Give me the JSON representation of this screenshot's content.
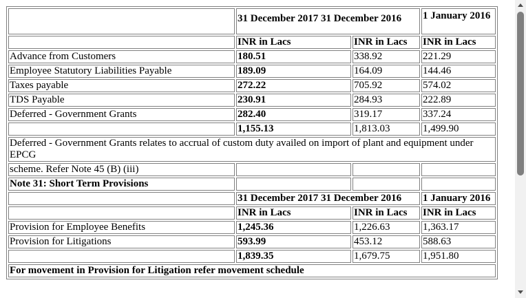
{
  "table1": {
    "header": {
      "col1": "31 December 2017",
      "col2": "31 December 2016",
      "col3": "1 January 2016"
    },
    "unit": "INR in Lacs",
    "rows": [
      {
        "label": "Advance from Customers",
        "v1": "180.51",
        "v2": "338.92",
        "v3": "221.29"
      },
      {
        "label": "Employee Statutory Liabilities Payable",
        "v1": "189.09",
        "v2": "164.09",
        "v3": "144.46"
      },
      {
        "label": "Taxes payable",
        "v1": "272.22",
        "v2": "705.92",
        "v3": "574.02"
      },
      {
        "label": "TDS Payable",
        "v1": "230.91",
        "v2": "284.93",
        "v3": "222.89"
      },
      {
        "label": "Deferred - Government Grants",
        "v1": "282.40",
        "v2": "319.17",
        "v3": "337.24"
      }
    ],
    "total": {
      "v1": "1,155.13",
      "v2": "1,813.03",
      "v3": "1,499.90"
    },
    "note_line1": "Deferred - Government Grants relates to accrual of custom duty availed on import of plant and equipment under EPCG",
    "note_line2": "scheme. Refer Note 45 (B) (iii)"
  },
  "note31": {
    "title": "Note 31: Short Term Provisions",
    "header": {
      "col1": "31 December 2017",
      "col2": "31 December 2016",
      "col3": "1 January 2016"
    },
    "unit": "INR in Lacs",
    "rows": [
      {
        "label": "Provision for Employee Benefits",
        "v1": "1,245.36",
        "v2": "1,226.63",
        "v3": "1,363.17"
      },
      {
        "label": "Provision for Litigations",
        "v1": "593.99",
        "v2": "453.12",
        "v3": "588.63"
      }
    ],
    "total": {
      "v1": "1,839.35",
      "v2": "1,679.75",
      "v3": "1,951.80"
    },
    "next_heading": "For movement in Provision for Litigation refer movement schedule"
  }
}
